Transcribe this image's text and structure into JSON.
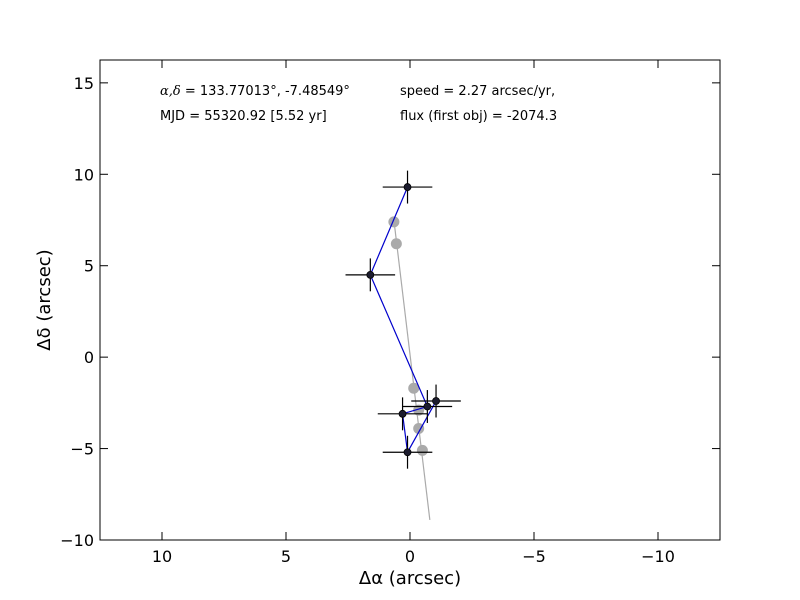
{
  "chart_data": {
    "type": "scatter",
    "xlabel": "Δα (arcsec)",
    "ylabel": "Δδ (arcsec)",
    "xlim": [
      12.5,
      -12.5
    ],
    "ylim": [
      -10,
      16.25
    ],
    "x_direction": "inverted",
    "grid": false,
    "legend": "none",
    "xticks": [
      {
        "value": 10,
        "label": "10"
      },
      {
        "value": 5,
        "label": "5"
      },
      {
        "value": 0,
        "label": "0"
      },
      {
        "value": -5,
        "label": "−5"
      },
      {
        "value": -10,
        "label": "−10"
      }
    ],
    "yticks": [
      {
        "value": 15,
        "label": "15"
      },
      {
        "value": 10,
        "label": "10"
      },
      {
        "value": 5,
        "label": "5"
      },
      {
        "value": 0,
        "label": "0"
      },
      {
        "value": -5,
        "label": "−5"
      },
      {
        "value": -10,
        "label": "−10"
      }
    ],
    "annotations": [
      {
        "prefix": "α,δ",
        "text": " = 133.77013°, -7.48549°"
      },
      {
        "text": "MJD = 55320.92 [5.52 yr]"
      },
      {
        "text": "speed = 2.27 arcsec/yr,"
      },
      {
        "text": "flux (first obj) = -2074.3"
      }
    ],
    "series": [
      {
        "kind": "measured",
        "color": "#0000cc",
        "marker_color": "#1c1c2e",
        "errorbar_color": "#000000",
        "points": [
          {
            "x": 0.1,
            "y": 9.3,
            "xerr": 1.0,
            "yerr": 0.9
          },
          {
            "x": 1.6,
            "y": 4.5,
            "xerr": 1.0,
            "yerr": 0.9
          },
          {
            "x": 0.3,
            "y": -3.1,
            "xerr": 1.0,
            "yerr": 0.9
          },
          {
            "x": 0.1,
            "y": -5.2,
            "xerr": 1.0,
            "yerr": 0.9
          },
          {
            "x": -0.7,
            "y": -2.7,
            "xerr": 1.0,
            "yerr": 0.9
          },
          {
            "x": -1.05,
            "y": -2.4,
            "xerr": 1.0,
            "yerr": 0.9
          }
        ],
        "path_order": [
          0,
          1,
          4,
          2,
          3,
          5
        ]
      },
      {
        "kind": "model",
        "color": "#aaaaaa",
        "line": [
          {
            "x": 0.65,
            "y": 7.5
          },
          {
            "x": -0.8,
            "y": -8.9
          }
        ],
        "points": [
          {
            "x": 0.65,
            "y": 7.4
          },
          {
            "x": 0.55,
            "y": 6.2
          },
          {
            "x": -0.15,
            "y": -1.7
          },
          {
            "x": -0.35,
            "y": -2.9
          },
          {
            "x": -0.35,
            "y": -3.9
          },
          {
            "x": -0.5,
            "y": -5.1
          }
        ]
      }
    ]
  },
  "colors": {
    "measured_line": "#0000cc",
    "measured_marker": "#1c1c2e",
    "errorbar": "#000000",
    "model": "#aaaaaa",
    "axes": "#000000"
  }
}
